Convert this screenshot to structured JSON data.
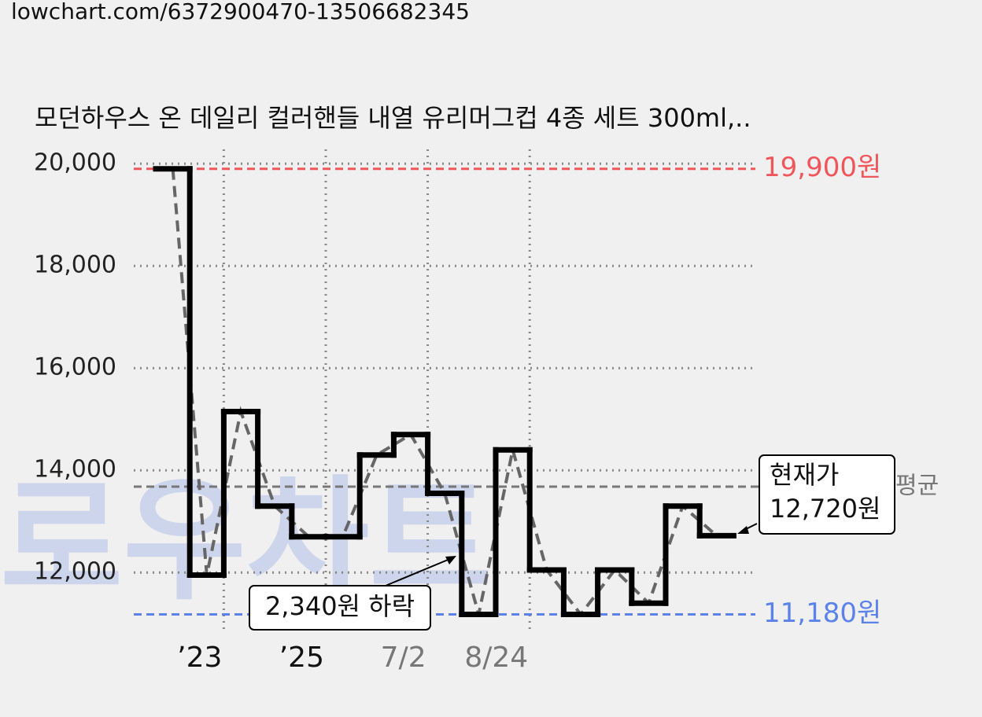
{
  "header": {
    "url": "lowchart.com/6372900470-13506682345"
  },
  "watermark": "로우차트",
  "chart_data": {
    "type": "step",
    "title": "모던하우스 온 데일리 컬러핸들 내열 유리머그컵 4종 세트 300ml,..",
    "categories": [
      null,
      "’23",
      null,
      null,
      "’25",
      null,
      null,
      "7/2",
      null,
      null,
      "8/24",
      null,
      null,
      null,
      null,
      null,
      null
    ],
    "series": [
      {
        "color": "#000000",
        "values": [
          19900,
          11950,
          15150,
          13300,
          12700,
          12700,
          14300,
          14700,
          13550,
          11180,
          14400,
          12050,
          11180,
          12050,
          11400,
          13300,
          12720
        ]
      }
    ],
    "ylim": [
      10880,
      20280
    ],
    "yticks": [
      {
        "value": 12000,
        "label": "12,000"
      },
      {
        "value": 14000,
        "label": "14,000"
      },
      {
        "value": 16000,
        "label": "16,000"
      },
      {
        "value": 18000,
        "label": "18,000"
      },
      {
        "value": 20000,
        "label": "20,000"
      }
    ],
    "grid": true,
    "reference_lines": [
      {
        "value": 19900,
        "label": "19,900원",
        "color": "#f0555a"
      },
      {
        "value": 11180,
        "label": "11,180원",
        "color": "#5b82ea"
      },
      {
        "value": 13680,
        "label": "평균",
        "color": "#777777"
      }
    ],
    "annotations": [
      {
        "text": "2,340원 하락"
      },
      {
        "text": "현재가",
        "text2": "12,720원"
      }
    ]
  }
}
